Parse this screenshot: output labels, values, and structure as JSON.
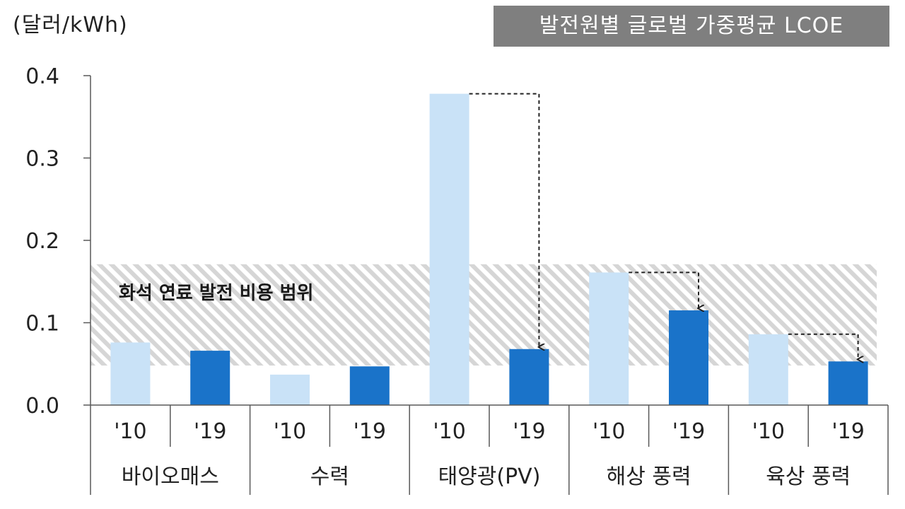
{
  "header": {
    "unit": "(달러/kWh)",
    "title": "발전원별  글로벌 가중평균 LCOE"
  },
  "band": {
    "label": "화석 연료 발전 비용 범위",
    "range": [
      0.048,
      0.171
    ]
  },
  "colors": {
    "bar_2010": "#c9e2f7",
    "bar_2019": "#1a73c9",
    "band_stripe": "#d6d6d6",
    "axis": "#595959",
    "arrow": "#222222"
  },
  "chart_data": {
    "type": "bar",
    "ylim": [
      0,
      0.4
    ],
    "yticks": [
      "0.0",
      "0.1",
      "0.2",
      "0.3",
      "0.4"
    ],
    "categories": [
      "바이오매스",
      "수력",
      "태양광(PV)",
      "해상 풍력",
      "육상 풍력"
    ],
    "year_labels": [
      "'10",
      "'19"
    ],
    "series": [
      {
        "name": "'10",
        "values": [
          0.076,
          0.037,
          0.378,
          0.161,
          0.086
        ]
      },
      {
        "name": "'19",
        "values": [
          0.066,
          0.047,
          0.068,
          0.115,
          0.053
        ]
      }
    ],
    "arrows_for": [
      "태양광(PV)",
      "해상 풍력",
      "육상 풍력"
    ]
  }
}
